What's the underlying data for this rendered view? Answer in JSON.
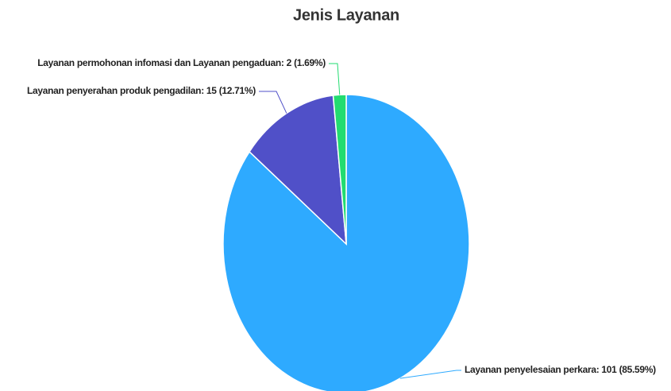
{
  "chart_data": {
    "type": "pie",
    "title": "Jenis Layanan",
    "labels": [
      "Layanan penyelesaian perkara: 101 (85.59%)",
      "Layanan penyerahan produk pengadilan: 15 (12.71%)",
      "Layanan permohonan infomasi dan Layanan pengaduan: 2 (1.69%)"
    ],
    "values": [
      101,
      15,
      2
    ],
    "colors": [
      "#2eaaff",
      "#5050c8",
      "#22dc70"
    ]
  }
}
